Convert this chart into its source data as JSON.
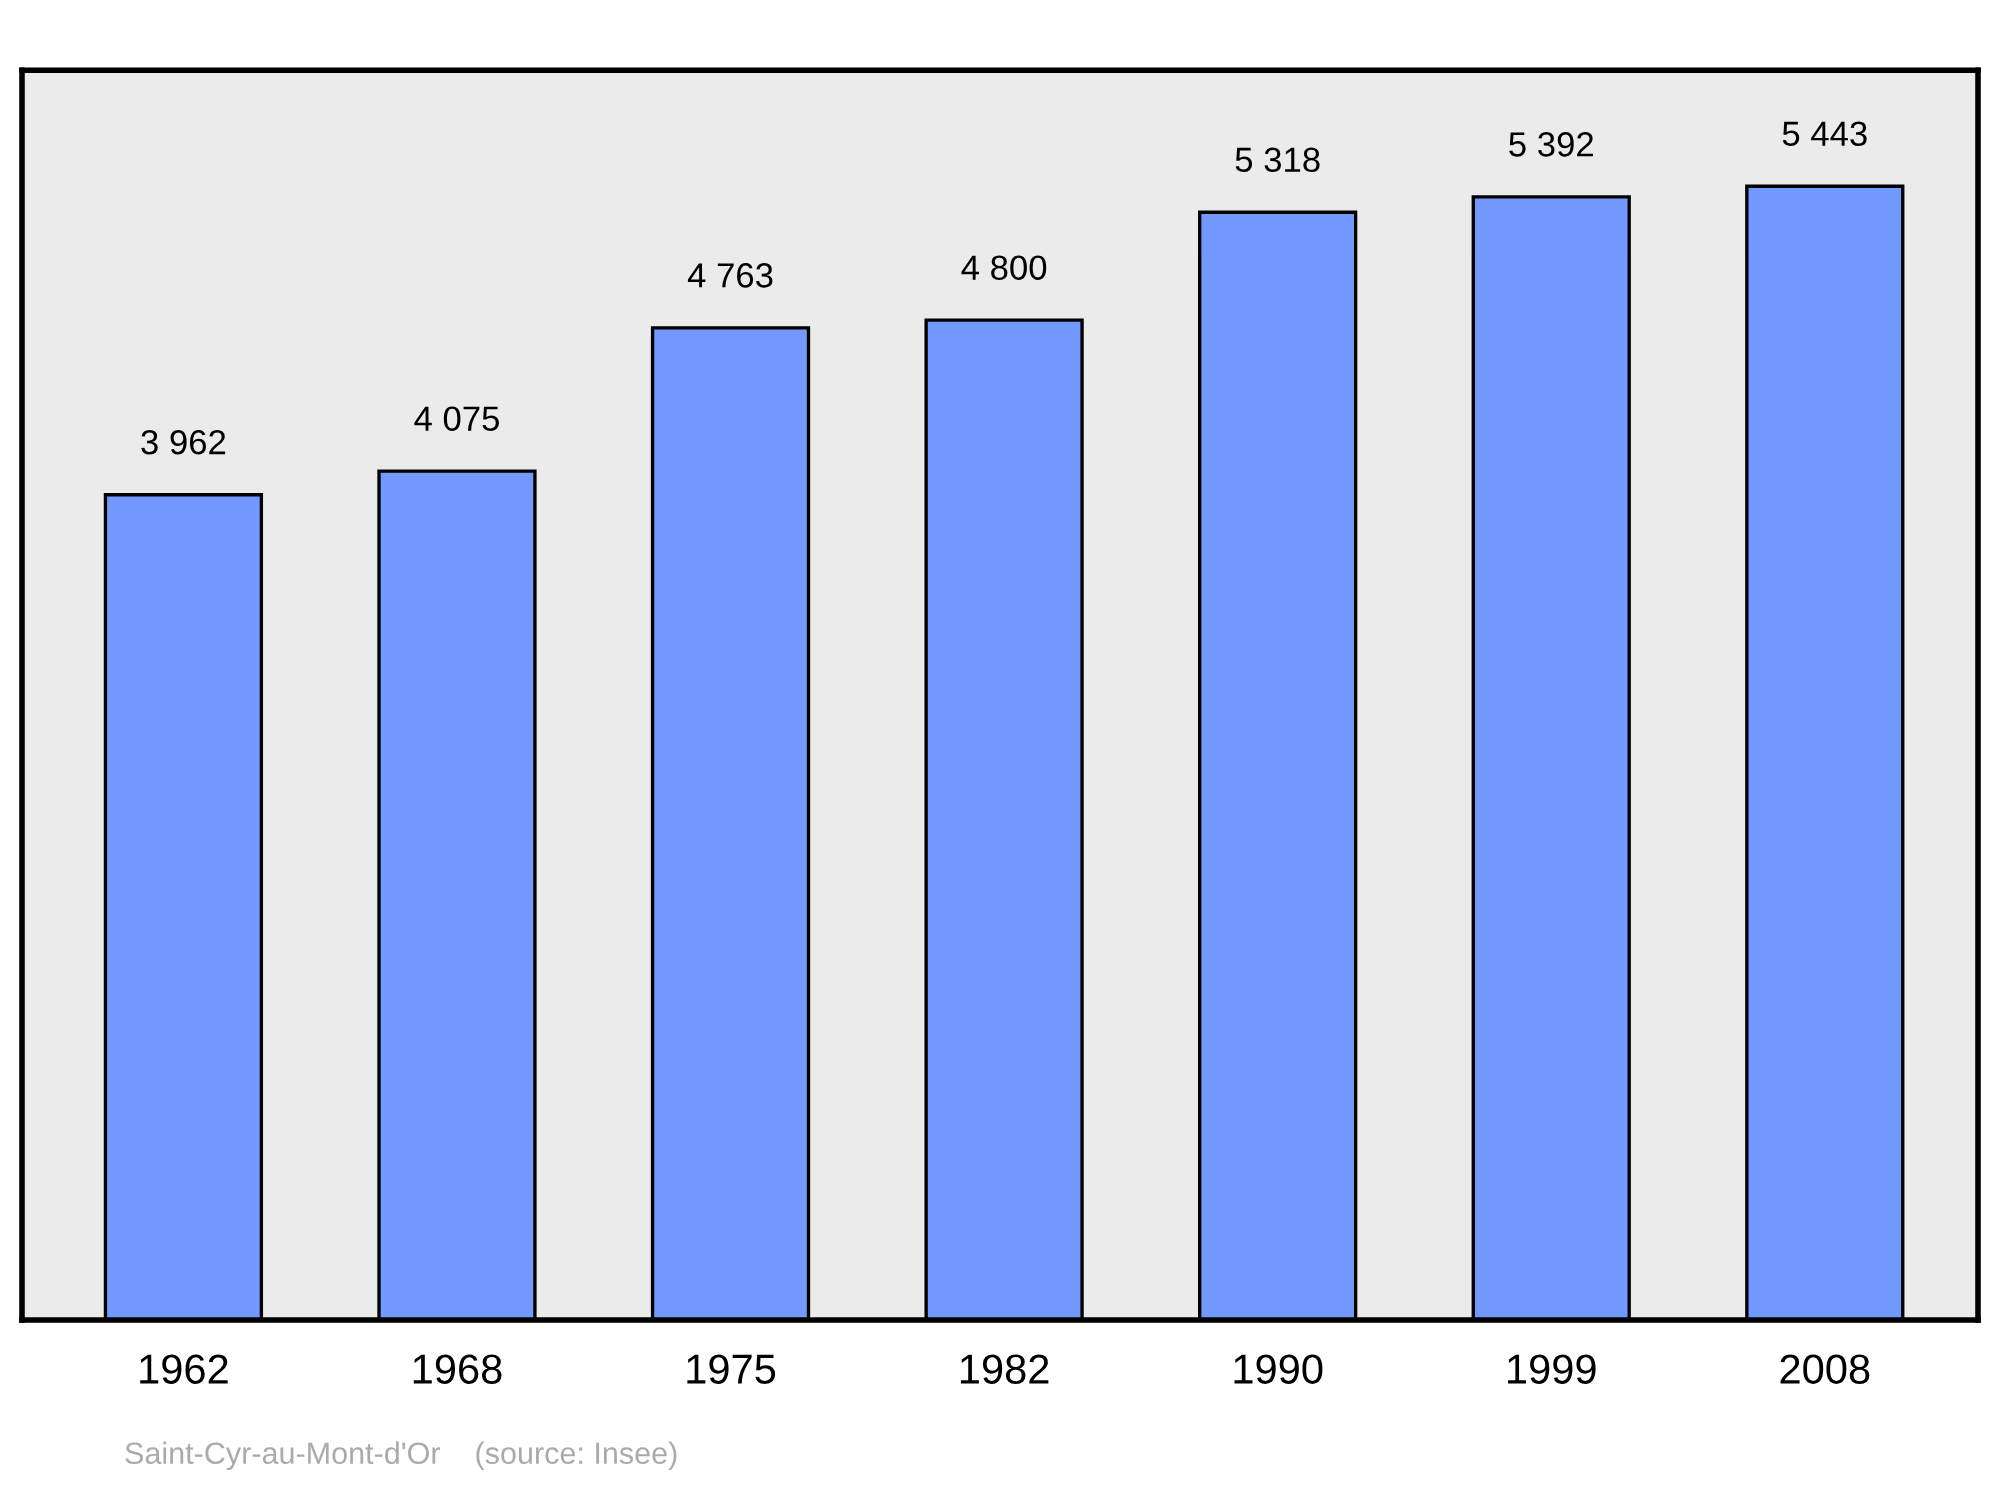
{
  "chart_data": {
    "type": "bar",
    "categories": [
      "1962",
      "1968",
      "1975",
      "1982",
      "1990",
      "1999",
      "2008"
    ],
    "values": [
      3962,
      4075,
      4763,
      4800,
      5318,
      5392,
      5443
    ],
    "value_labels": [
      "3 962",
      "4 075",
      "4 763",
      "4 800",
      "5 318",
      "5 392",
      "5 443"
    ],
    "color": "#7399ff",
    "ylim": [
      0,
      6000
    ],
    "tick_labels": "x",
    "grid": false,
    "legend": false,
    "annotations": [
      "Saint-Cyr-au-Mont-d'Or    (source: Insee)"
    ]
  }
}
